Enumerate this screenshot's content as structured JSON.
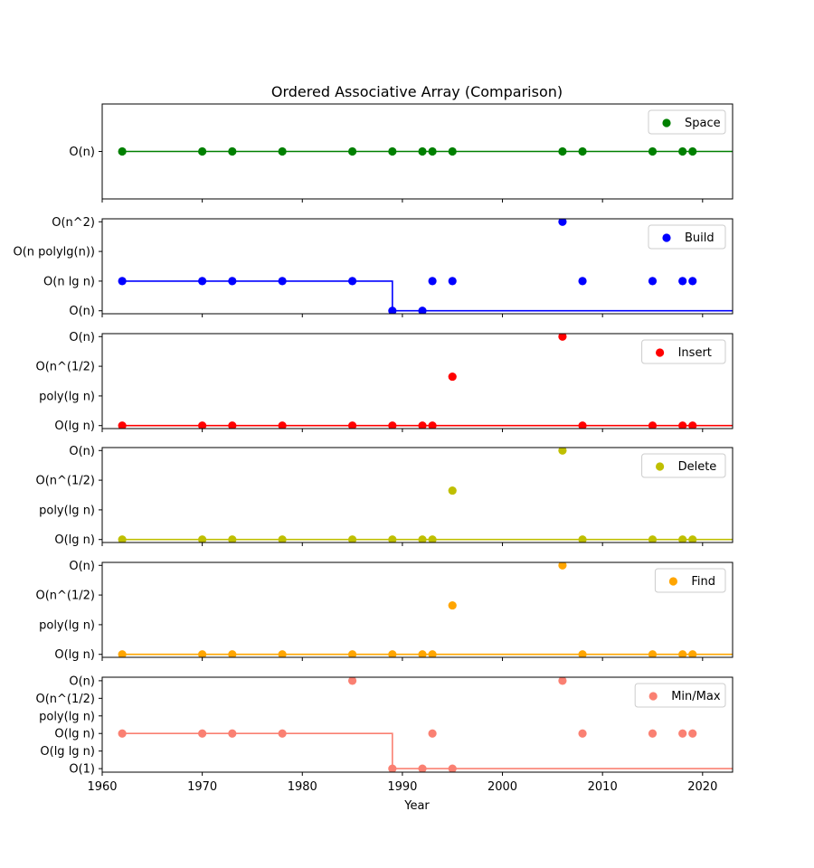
{
  "chart_data": {
    "type": "scatter",
    "title": "Ordered Associative Array (Comparison)",
    "xlabel": "Year",
    "xlim": [
      1960,
      2023
    ],
    "xticks": [
      1960,
      1970,
      1980,
      1990,
      2000,
      2010,
      2020
    ],
    "years": [
      1962,
      1970,
      1973,
      1978,
      1985,
      1989,
      1992,
      1993,
      1995,
      2006,
      2008,
      2015,
      2018,
      2019
    ],
    "panels": [
      {
        "name": "Space",
        "color": "#008000",
        "yticks": [
          "O(n)"
        ],
        "ylim": [
          -0.5,
          0.5
        ],
        "points": [
          0,
          0,
          0,
          0,
          0,
          0,
          0,
          0,
          0,
          0,
          0,
          0,
          0,
          0
        ],
        "frontier": [
          [
            1962,
            0
          ],
          [
            2023,
            0
          ]
        ]
      },
      {
        "name": "Build",
        "color": "#0000ff",
        "yticks": [
          "O(n)",
          "O(n lg n)",
          "O(n polylg(n))",
          "O(n^2)"
        ],
        "ylim": [
          -0.1,
          3.1
        ],
        "points": [
          1,
          1,
          1,
          1,
          1,
          0,
          0,
          1,
          1,
          3,
          1,
          1,
          1,
          1
        ],
        "frontier": [
          [
            1962,
            1
          ],
          [
            1989,
            1
          ],
          [
            1989,
            0
          ],
          [
            2023,
            0
          ]
        ]
      },
      {
        "name": "Insert",
        "color": "#ff0000",
        "yticks": [
          "O(lg n)",
          "poly(lg n)",
          "O(n^(1/2)",
          "O(n)"
        ],
        "ylim": [
          -0.1,
          3.1
        ],
        "points": [
          0,
          0,
          0,
          0,
          0,
          0,
          0,
          0,
          1.65,
          3,
          0,
          0,
          0,
          0
        ],
        "frontier": [
          [
            1962,
            0
          ],
          [
            2023,
            0
          ]
        ]
      },
      {
        "name": "Delete",
        "color": "#bfbf00",
        "yticks": [
          "O(lg n)",
          "poly(lg n)",
          "O(n^(1/2)",
          "O(n)"
        ],
        "ylim": [
          -0.1,
          3.1
        ],
        "points": [
          0,
          0,
          0,
          0,
          0,
          0,
          0,
          0,
          1.65,
          3,
          0,
          0,
          0,
          0
        ],
        "frontier": [
          [
            1962,
            0
          ],
          [
            2023,
            0
          ]
        ]
      },
      {
        "name": "Find",
        "color": "#ffa500",
        "yticks": [
          "O(lg n)",
          "poly(lg n)",
          "O(n^(1/2)",
          "O(n)"
        ],
        "ylim": [
          -0.1,
          3.1
        ],
        "points": [
          0,
          0,
          0,
          0,
          0,
          0,
          0,
          0,
          1.65,
          3,
          0,
          0,
          0,
          0
        ],
        "frontier": [
          [
            1962,
            0
          ],
          [
            2023,
            0
          ]
        ]
      },
      {
        "name": "Min/Max",
        "color": "#fa8072",
        "yticks": [
          "O(1)",
          "O(lg lg n)",
          "O(lg n)",
          "poly(lg n)",
          "O(n^(1/2)",
          "O(n)"
        ],
        "ylim": [
          -0.2,
          5.2
        ],
        "points": [
          2,
          2,
          2,
          2,
          5,
          0,
          0,
          2,
          0,
          5,
          2,
          2,
          2,
          2
        ],
        "frontier": [
          [
            1962,
            2
          ],
          [
            1989,
            2
          ],
          [
            1989,
            0
          ],
          [
            2023,
            0
          ]
        ]
      }
    ]
  }
}
